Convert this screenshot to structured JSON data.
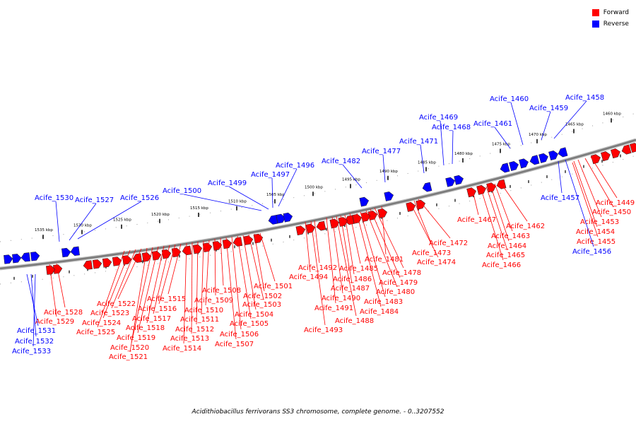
{
  "caption": "Acidithiobacillus ferrivorans SS3 chromosome, complete genome. - 0..3207552",
  "legend": [
    {
      "label": "Forward",
      "color": "#ff0000"
    },
    {
      "label": "Reverse",
      "color": "#0000ff"
    }
  ],
  "colors": {
    "forward": "#ff0000",
    "reverse": "#0000ff",
    "backbone": "#7a7a7a"
  },
  "ticks": [
    "1460 kbp",
    "1465 kbp",
    "1470 kbp",
    "1475 kbp",
    "1480 kbp",
    "1485 kbp",
    "1490 kbp",
    "1495 kbp",
    "1500 kbp",
    "1505 kbp",
    "1510 kbp",
    "1515 kbp",
    "1520 kbp",
    "1525 kbp",
    "1530 kbp",
    "1535 kbp"
  ],
  "genes_forward": [
    "Acife_1449",
    "Acife_1450",
    "Acife_1453",
    "Acife_1454",
    "Acife_1455",
    "Acife_1462",
    "Acife_1463",
    "Acife_1464",
    "Acife_1465",
    "Acife_1466",
    "Acife_1467",
    "Acife_1472",
    "Acife_1473",
    "Acife_1474",
    "Acife_1478",
    "Acife_1479",
    "Acife_1480",
    "Acife_1481",
    "Acife_1483",
    "Acife_1484",
    "Acife_1485",
    "Acife_1486",
    "Acife_1487",
    "Acife_1488",
    "Acife_1490",
    "Acife_1491",
    "Acife_1492",
    "Acife_1493",
    "Acife_1494",
    "Acife_1501",
    "Acife_1502",
    "Acife_1503",
    "Acife_1504",
    "Acife_1505",
    "Acife_1506",
    "Acife_1507",
    "Acife_1508",
    "Acife_1509",
    "Acife_1510",
    "Acife_1511",
    "Acife_1512",
    "Acife_1513",
    "Acife_1514",
    "Acife_1515",
    "Acife_1516",
    "Acife_1517",
    "Acife_1518",
    "Acife_1519",
    "Acife_1520",
    "Acife_1521",
    "Acife_1522",
    "Acife_1523",
    "Acife_1524",
    "Acife_1525",
    "Acife_1528",
    "Acife_1529"
  ],
  "genes_reverse": [
    "Acife_1456",
    "Acife_1457",
    "Acife_1458",
    "Acife_1459",
    "Acife_1460",
    "Acife_1461",
    "Acife_1468",
    "Acife_1469",
    "Acife_1471",
    "Acife_1477",
    "Acife_1482",
    "Acife_1496",
    "Acife_1497",
    "Acife_1499",
    "Acife_1500",
    "Acife_1526",
    "Acife_1527",
    "Acife_1530",
    "Acife_1531",
    "Acife_1532",
    "Acife_1533"
  ]
}
